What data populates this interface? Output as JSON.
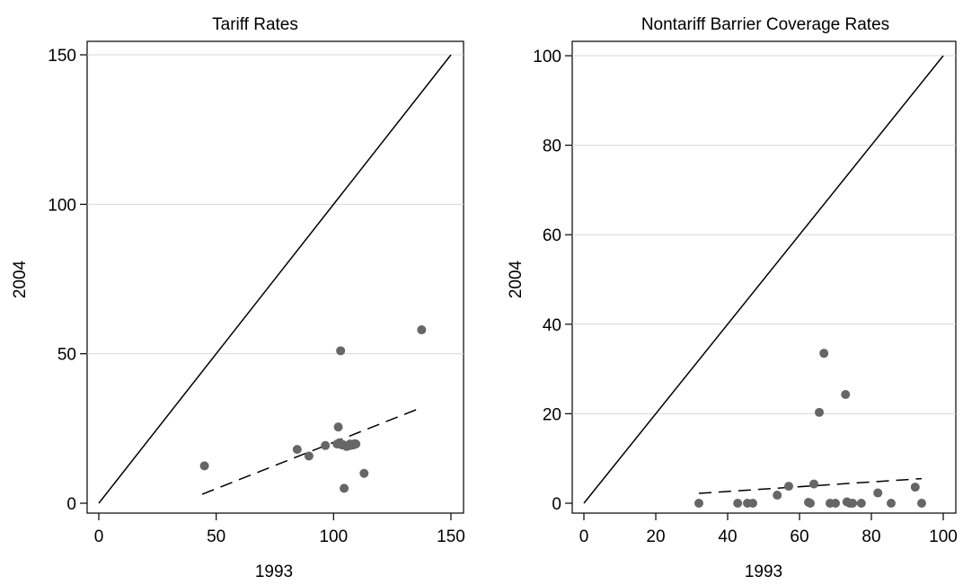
{
  "chart_data": [
    {
      "type": "scatter",
      "title": "Tariff Rates",
      "xlabel": "1993",
      "ylabel": "2004",
      "xlim": [
        0,
        150
      ],
      "ylim": [
        0,
        150
      ],
      "xticks": [
        0,
        50,
        100,
        150
      ],
      "yticks": [
        0,
        50,
        100,
        150
      ],
      "grid": "horizontal",
      "legend": "none",
      "point_color": "#666666",
      "points": [
        {
          "x": 45,
          "y": 12.5
        },
        {
          "x": 84.5,
          "y": 18
        },
        {
          "x": 89.5,
          "y": 15.8
        },
        {
          "x": 96.5,
          "y": 19.3
        },
        {
          "x": 101.5,
          "y": 19.8
        },
        {
          "x": 102,
          "y": 25.5
        },
        {
          "x": 102.5,
          "y": 20.2
        },
        {
          "x": 103,
          "y": 51
        },
        {
          "x": 103.5,
          "y": 19.5
        },
        {
          "x": 104,
          "y": 19.6
        },
        {
          "x": 104.5,
          "y": 5
        },
        {
          "x": 105.5,
          "y": 19
        },
        {
          "x": 106.5,
          "y": 19.2
        },
        {
          "x": 107,
          "y": 19.8
        },
        {
          "x": 107.5,
          "y": 19.4
        },
        {
          "x": 108,
          "y": 19.7
        },
        {
          "x": 108.5,
          "y": 19.5
        },
        {
          "x": 109,
          "y": 19.9
        },
        {
          "x": 109.5,
          "y": 19.8
        },
        {
          "x": 113,
          "y": 10
        },
        {
          "x": 137.5,
          "y": 58
        }
      ],
      "reference_line": {
        "style": "solid",
        "from": [
          0,
          0
        ],
        "to": [
          150,
          150
        ]
      },
      "fit_line": {
        "style": "dashed",
        "from": [
          44,
          3
        ],
        "to": [
          137.5,
          32
        ]
      }
    },
    {
      "type": "scatter",
      "title": "Nontariff Barrier Coverage Rates",
      "xlabel": "1993",
      "ylabel": "2004",
      "xlim": [
        0,
        100
      ],
      "ylim": [
        0,
        100
      ],
      "xticks": [
        0,
        20,
        40,
        60,
        80,
        100
      ],
      "yticks": [
        0,
        20,
        40,
        60,
        80,
        100
      ],
      "grid": "horizontal",
      "legend": "none",
      "point_color": "#666666",
      "points": [
        {
          "x": 32,
          "y": 0
        },
        {
          "x": 42.8,
          "y": 0
        },
        {
          "x": 45.5,
          "y": 0
        },
        {
          "x": 47,
          "y": 0
        },
        {
          "x": 53.8,
          "y": 1.8
        },
        {
          "x": 57,
          "y": 3.8
        },
        {
          "x": 62.5,
          "y": 0.2
        },
        {
          "x": 63,
          "y": 0
        },
        {
          "x": 64,
          "y": 4.3
        },
        {
          "x": 65.5,
          "y": 20.3
        },
        {
          "x": 66.8,
          "y": 33.5
        },
        {
          "x": 68.5,
          "y": 0
        },
        {
          "x": 70,
          "y": 0
        },
        {
          "x": 72.8,
          "y": 24.3
        },
        {
          "x": 73.2,
          "y": 0.3
        },
        {
          "x": 74,
          "y": 0
        },
        {
          "x": 74.8,
          "y": 0
        },
        {
          "x": 77.2,
          "y": 0
        },
        {
          "x": 81.8,
          "y": 2.3
        },
        {
          "x": 85.5,
          "y": 0
        },
        {
          "x": 92.2,
          "y": 3.6
        },
        {
          "x": 94,
          "y": 0
        }
      ],
      "reference_line": {
        "style": "solid",
        "from": [
          0,
          0
        ],
        "to": [
          100,
          100
        ]
      },
      "fit_line": {
        "style": "dashed",
        "from": [
          32,
          2.2
        ],
        "to": [
          94,
          5.5
        ]
      }
    }
  ]
}
